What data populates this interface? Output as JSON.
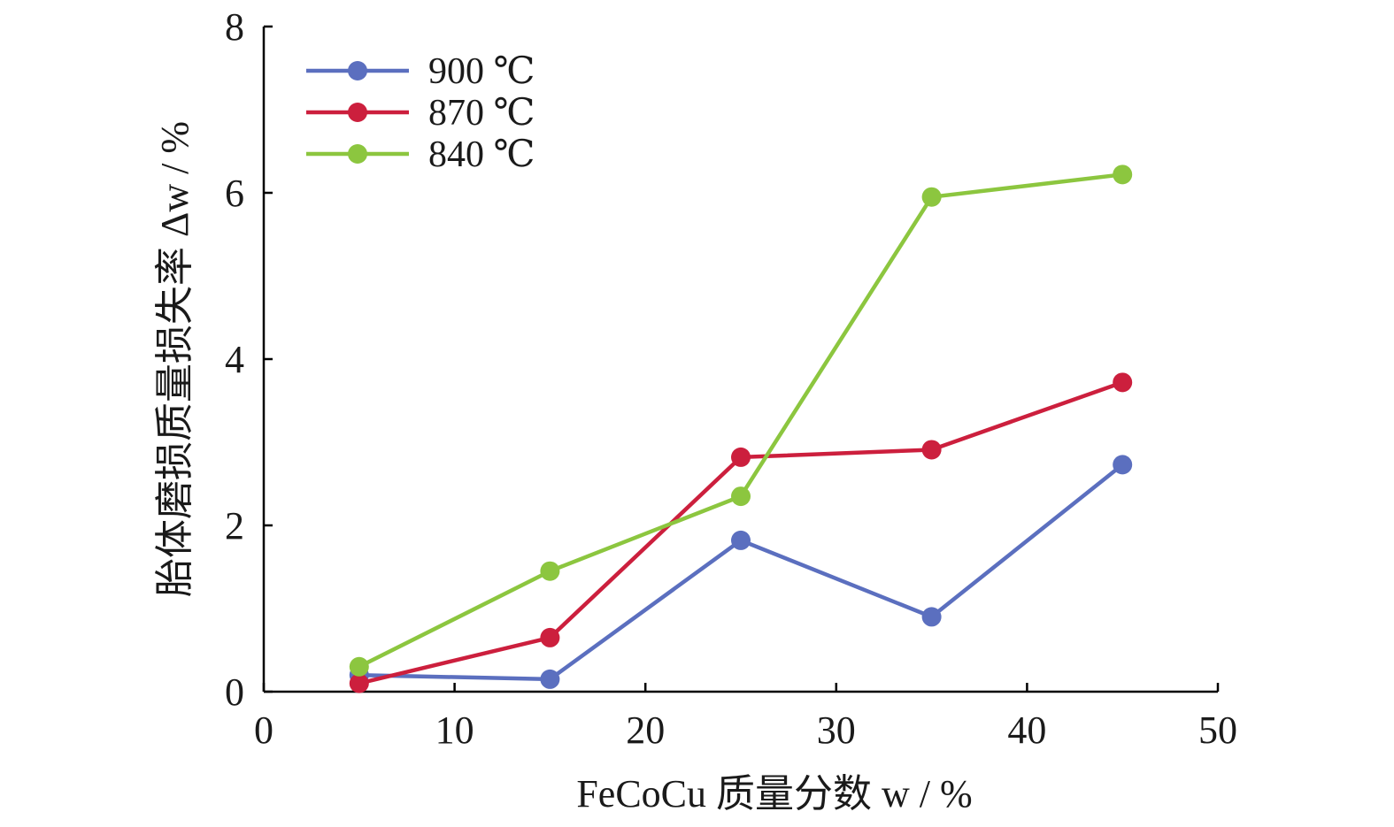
{
  "chart_data": {
    "type": "line",
    "xlabel": "FeCoCu 质量分数 w / %",
    "ylabel": "胎体磨损质量损失率 Δw / %",
    "xlim": [
      0,
      50
    ],
    "ylim": [
      0,
      8
    ],
    "xticks": [
      0,
      10,
      20,
      30,
      40,
      50
    ],
    "yticks": [
      0,
      2,
      4,
      6,
      8
    ],
    "grid": false,
    "legend_position": "top-left",
    "x": [
      5,
      15,
      25,
      35,
      45
    ],
    "series": [
      {
        "name": "900 ℃",
        "color": "#5b6fbf",
        "values": [
          0.2,
          0.15,
          1.82,
          0.9,
          2.73
        ]
      },
      {
        "name": "870 ℃",
        "color": "#cc1f3d",
        "values": [
          0.1,
          0.65,
          2.82,
          2.91,
          3.72
        ]
      },
      {
        "name": "840 ℃",
        "color": "#8cc63f",
        "values": [
          0.3,
          1.45,
          2.35,
          5.95,
          6.22
        ]
      }
    ]
  }
}
